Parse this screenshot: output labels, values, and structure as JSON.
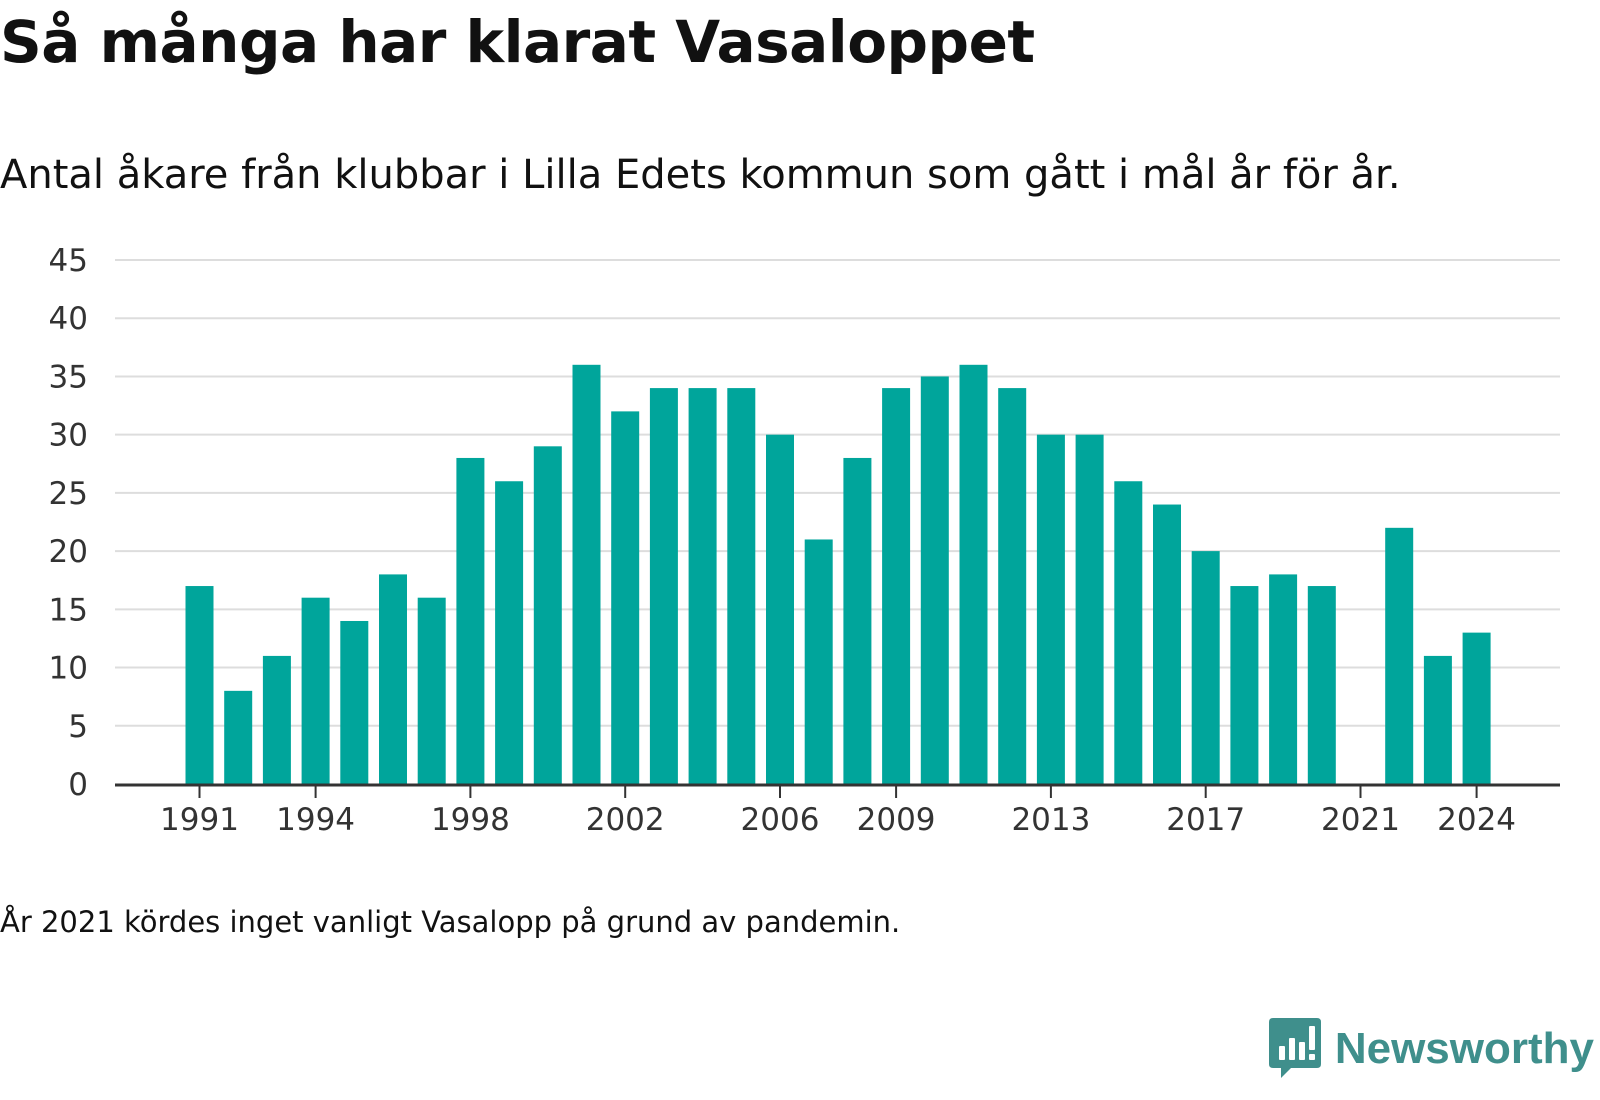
{
  "header": {
    "title": "Så många har klarat Vasaloppet",
    "subtitle": "Antal åkare från klubbar i Lilla Edets kommun som gått i mål år för år."
  },
  "footnote": "År 2021 kördes inget vanligt Vasalopp på grund av pandemin.",
  "logo": {
    "text": "Newsworthy",
    "icon": "newsworthy-logo-icon"
  },
  "colors": {
    "bar": "#00a59b",
    "grid": "#dddddd",
    "axis": "#333333",
    "logo": "#3f8f8c"
  },
  "chart_data": {
    "type": "bar",
    "title": "Så många har klarat Vasaloppet",
    "subtitle": "Antal åkare från klubbar i Lilla Edets kommun som gått i mål år för år.",
    "categories": [
      "1991",
      "1992",
      "1993",
      "1994",
      "1995",
      "1996",
      "1997",
      "1998",
      "1999",
      "2000",
      "2001",
      "2002",
      "2003",
      "2004",
      "2005",
      "2006",
      "2007",
      "2008",
      "2009",
      "2010",
      "2011",
      "2012",
      "2013",
      "2014",
      "2015",
      "2016",
      "2017",
      "2018",
      "2019",
      "2020",
      "2021",
      "2022",
      "2023",
      "2024"
    ],
    "values": [
      17,
      8,
      11,
      16,
      14,
      18,
      16,
      28,
      26,
      29,
      36,
      32,
      34,
      34,
      34,
      30,
      21,
      28,
      34,
      35,
      36,
      34,
      30,
      30,
      26,
      24,
      20,
      17,
      18,
      17,
      0,
      22,
      11,
      13
    ],
    "x_tick_labels": [
      "1991",
      "1994",
      "1998",
      "2002",
      "2006",
      "2009",
      "2013",
      "2017",
      "2021",
      "2024"
    ],
    "y_ticks": [
      0,
      5,
      10,
      15,
      20,
      25,
      30,
      35,
      40,
      45
    ],
    "ylim": [
      0,
      45
    ],
    "xlabel": "",
    "ylabel": "",
    "grid": true,
    "legend": "none"
  }
}
